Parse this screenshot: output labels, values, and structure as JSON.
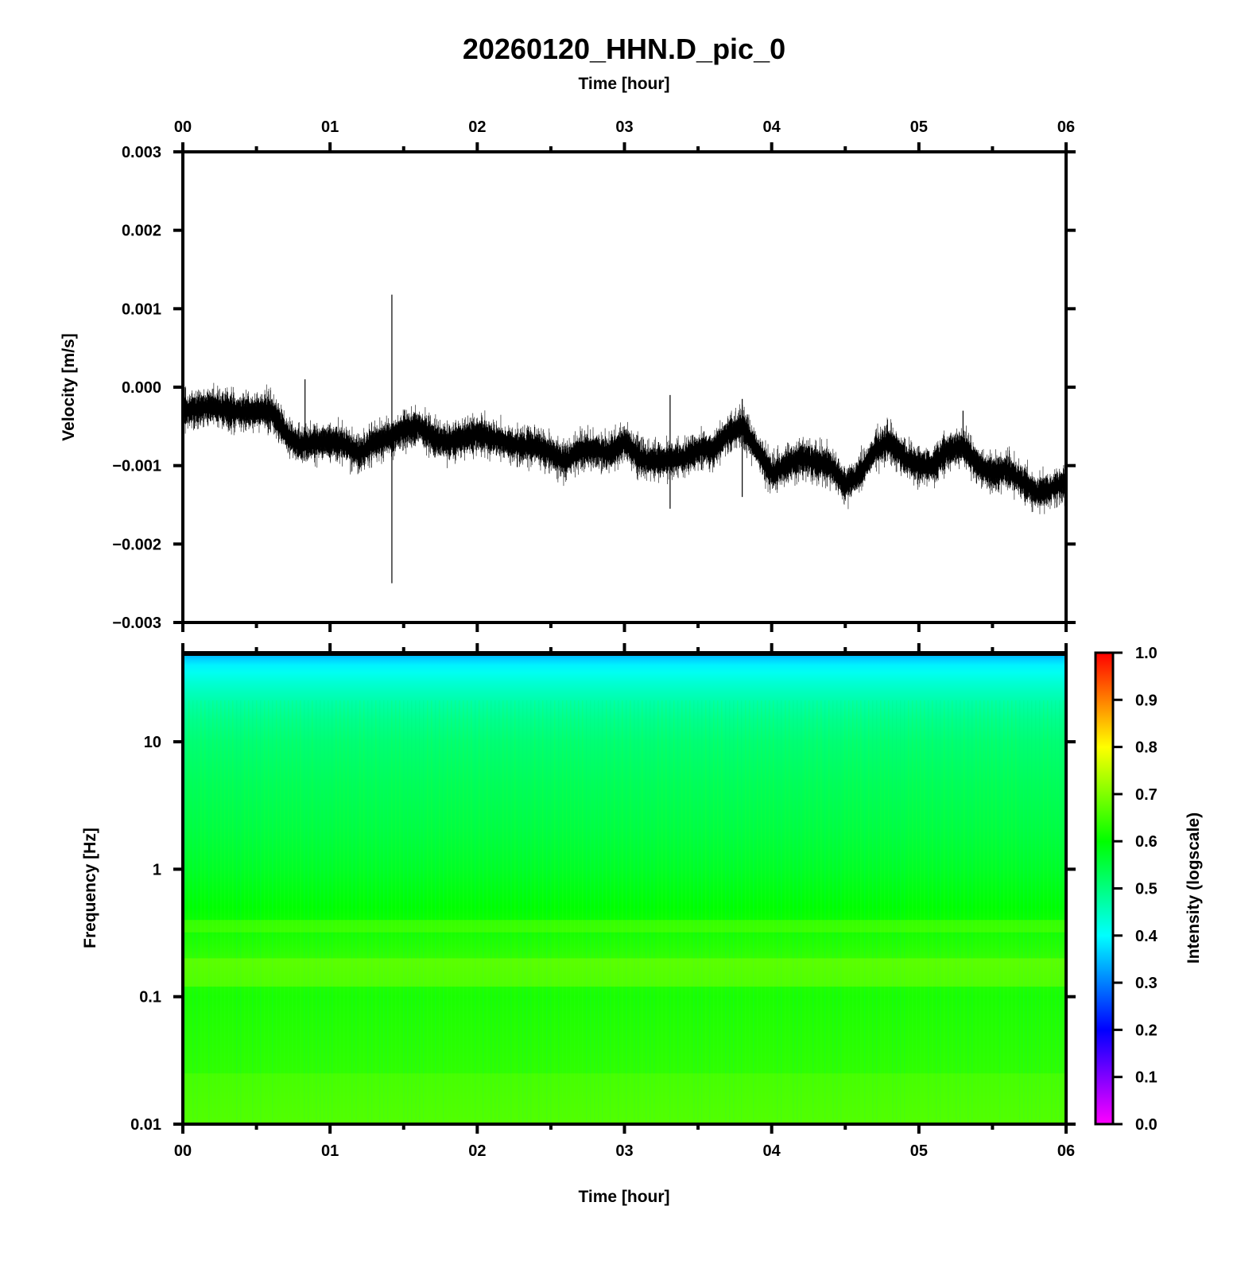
{
  "chart_data": [
    {
      "type": "line",
      "title": "20260120_HHN.D_pic_0",
      "xlabel": "Time [hour]",
      "ylabel": "Velocity [m/s]",
      "x_tick_labels": [
        "00",
        "01",
        "02",
        "03",
        "04",
        "05",
        "06"
      ],
      "y_tick_labels": [
        "0.003",
        "0.002",
        "0.001",
        "0.000",
        "−0.001",
        "−0.002",
        "−0.003"
      ],
      "xlim": [
        0,
        6
      ],
      "ylim": [
        -0.003,
        0.003
      ],
      "x_axis_position": "top",
      "grid": false,
      "series_color": "#000000",
      "trend": {
        "x": [
          0.0,
          0.2,
          0.4,
          0.6,
          0.7,
          0.8,
          0.9,
          1.0,
          1.1,
          1.2,
          1.3,
          1.4,
          1.5,
          1.6,
          1.7,
          1.8,
          1.9,
          2.0,
          2.1,
          2.2,
          2.3,
          2.4,
          2.5,
          2.6,
          2.7,
          2.8,
          2.9,
          3.0,
          3.1,
          3.2,
          3.3,
          3.4,
          3.5,
          3.6,
          3.7,
          3.8,
          3.9,
          4.0,
          4.1,
          4.2,
          4.3,
          4.4,
          4.5,
          4.6,
          4.7,
          4.8,
          4.9,
          5.0,
          5.1,
          5.2,
          5.3,
          5.4,
          5.5,
          5.6,
          5.7,
          5.8,
          5.9,
          6.0
        ],
        "y": [
          -0.0003,
          -0.00025,
          -0.00032,
          -0.0003,
          -0.0006,
          -0.00075,
          -0.0007,
          -0.0007,
          -0.00072,
          -0.00085,
          -0.0007,
          -0.00065,
          -0.00055,
          -0.0005,
          -0.00065,
          -0.0007,
          -0.00065,
          -0.0006,
          -0.00065,
          -0.0007,
          -0.00075,
          -0.00075,
          -0.00085,
          -0.00095,
          -0.0008,
          -0.0008,
          -0.00085,
          -0.0007,
          -0.0009,
          -0.00095,
          -0.00092,
          -0.0009,
          -0.0008,
          -0.0008,
          -0.0006,
          -0.0005,
          -0.0008,
          -0.0011,
          -0.001,
          -0.0009,
          -0.00095,
          -0.001,
          -0.00125,
          -0.0011,
          -0.0008,
          -0.0007,
          -0.0009,
          -0.001,
          -0.001,
          -0.0008,
          -0.00075,
          -0.001,
          -0.0011,
          -0.00105,
          -0.0012,
          -0.00135,
          -0.0013,
          -0.0012
        ]
      },
      "spikes": [
        {
          "x": 1.42,
          "ymin": -0.0025,
          "ymax": 0.00118
        },
        {
          "x": 0.83,
          "ymin": -0.0008,
          "ymax": 0.0001
        },
        {
          "x": 3.31,
          "ymin": -0.00155,
          "ymax": -0.0001
        },
        {
          "x": 3.8,
          "ymin": -0.0014,
          "ymax": -0.00015
        },
        {
          "x": 5.3,
          "ymin": -0.0009,
          "ymax": -0.0003
        }
      ]
    },
    {
      "type": "heatmap",
      "xlabel": "Time [hour]",
      "ylabel": "Frequency [Hz]",
      "x_tick_labels": [
        "00",
        "01",
        "02",
        "03",
        "04",
        "05",
        "06"
      ],
      "y_tick_labels": [
        "10",
        "1",
        "0.1",
        "0.01"
      ],
      "xlim": [
        0,
        6
      ],
      "ylim": [
        0.01,
        50
      ],
      "y_scale": "log",
      "grid": false,
      "intensity_profile": {
        "freq_hz": [
          50,
          45,
          40,
          35,
          30,
          25,
          20,
          15,
          10,
          5,
          2,
          1,
          0.5,
          0.3,
          0.2,
          0.1,
          0.05,
          0.02,
          0.01
        ],
        "intensity": [
          0.33,
          0.36,
          0.39,
          0.41,
          0.43,
          0.45,
          0.47,
          0.49,
          0.51,
          0.53,
          0.55,
          0.57,
          0.6,
          0.62,
          0.64,
          0.62,
          0.63,
          0.64,
          0.65
        ]
      },
      "colorbar": {
        "label": "Intensity (logscale)",
        "range": [
          0.0,
          1.0
        ],
        "tick_labels": [
          "1.0",
          "0.9",
          "0.8",
          "0.7",
          "0.6",
          "0.5",
          "0.4",
          "0.3",
          "0.2",
          "0.1",
          "0.0"
        ],
        "colors": [
          "#ff00ff",
          "#8000ff",
          "#0000ff",
          "#0080ff",
          "#00ffff",
          "#00ff80",
          "#00ff00",
          "#80ff00",
          "#ffff00",
          "#ff8000",
          "#ff0000"
        ]
      }
    }
  ]
}
